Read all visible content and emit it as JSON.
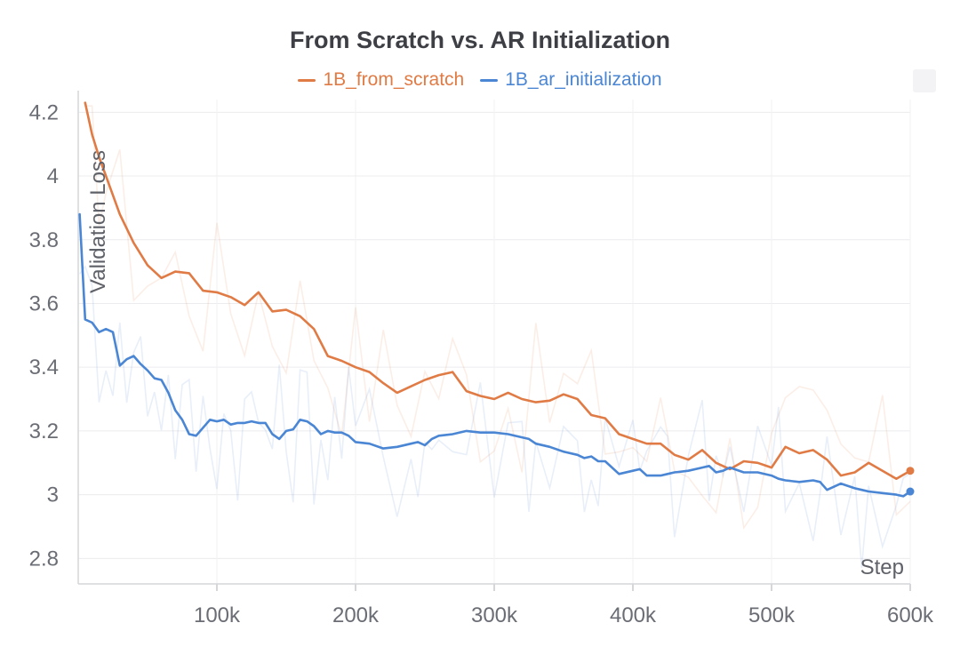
{
  "chart_data": {
    "type": "line",
    "title": "From Scratch vs. AR Initialization",
    "xlabel": "Step",
    "ylabel": "Validation Loss",
    "xlim": [
      0,
      600000
    ],
    "ylim": [
      2.72,
      4.24
    ],
    "x_ticks": [
      100000,
      200000,
      300000,
      400000,
      500000,
      600000
    ],
    "x_tick_labels": [
      "100k",
      "200k",
      "300k",
      "400k",
      "500k",
      "600k"
    ],
    "y_ticks": [
      2.8,
      3.0,
      3.2,
      3.4,
      3.6,
      3.8,
      4.0,
      4.2
    ],
    "y_tick_labels": [
      "2.8",
      "3",
      "3.2",
      "3.4",
      "3.6",
      "3.8",
      "4",
      "4.2"
    ],
    "grid": true,
    "legend_position": "top-center",
    "series": [
      {
        "name": "1B_from_scratch",
        "color": "#e07b45",
        "x": [
          5000,
          10000,
          15000,
          20000,
          30000,
          40000,
          50000,
          60000,
          70000,
          80000,
          90000,
          100000,
          110000,
          120000,
          130000,
          140000,
          150000,
          160000,
          170000,
          180000,
          190000,
          200000,
          210000,
          220000,
          230000,
          240000,
          250000,
          260000,
          270000,
          280000,
          290000,
          300000,
          310000,
          320000,
          330000,
          340000,
          350000,
          360000,
          370000,
          380000,
          390000,
          400000,
          410000,
          420000,
          430000,
          440000,
          450000,
          460000,
          470000,
          480000,
          490000,
          500000,
          510000,
          520000,
          530000,
          540000,
          550000,
          560000,
          570000,
          580000,
          590000,
          600000
        ],
        "values": [
          4.23,
          4.13,
          4.06,
          4.0,
          3.88,
          3.79,
          3.72,
          3.68,
          3.7,
          3.695,
          3.64,
          3.635,
          3.62,
          3.595,
          3.635,
          3.575,
          3.58,
          3.56,
          3.52,
          3.435,
          3.42,
          3.4,
          3.385,
          3.35,
          3.32,
          3.34,
          3.36,
          3.375,
          3.385,
          3.325,
          3.31,
          3.3,
          3.32,
          3.3,
          3.29,
          3.295,
          3.315,
          3.3,
          3.25,
          3.24,
          3.19,
          3.175,
          3.16,
          3.16,
          3.125,
          3.11,
          3.14,
          3.1,
          3.08,
          3.105,
          3.1,
          3.085,
          3.15,
          3.13,
          3.14,
          3.11,
          3.06,
          3.07,
          3.1,
          3.075,
          3.05,
          3.075
        ]
      },
      {
        "name": "1B_ar_initialization",
        "color": "#4a86d4",
        "x": [
          1000,
          5000,
          10000,
          15000,
          20000,
          25000,
          30000,
          35000,
          40000,
          45000,
          50000,
          55000,
          60000,
          65000,
          70000,
          75000,
          80000,
          85000,
          90000,
          95000,
          100000,
          105000,
          110000,
          115000,
          120000,
          125000,
          130000,
          135000,
          140000,
          145000,
          150000,
          155000,
          160000,
          165000,
          170000,
          175000,
          180000,
          185000,
          190000,
          195000,
          200000,
          210000,
          220000,
          230000,
          240000,
          245000,
          250000,
          255000,
          260000,
          270000,
          280000,
          290000,
          300000,
          310000,
          320000,
          325000,
          330000,
          340000,
          350000,
          360000,
          365000,
          370000,
          375000,
          380000,
          390000,
          400000,
          405000,
          410000,
          420000,
          425000,
          430000,
          440000,
          450000,
          455000,
          460000,
          465000,
          470000,
          480000,
          490000,
          500000,
          505000,
          510000,
          520000,
          530000,
          535000,
          540000,
          550000,
          560000,
          565000,
          570000,
          580000,
          590000,
          595000,
          600000
        ],
        "values": [
          3.88,
          3.55,
          3.54,
          3.51,
          3.52,
          3.51,
          3.405,
          3.425,
          3.435,
          3.41,
          3.39,
          3.365,
          3.36,
          3.32,
          3.265,
          3.235,
          3.19,
          3.185,
          3.21,
          3.235,
          3.23,
          3.235,
          3.22,
          3.225,
          3.225,
          3.23,
          3.225,
          3.225,
          3.19,
          3.175,
          3.2,
          3.205,
          3.235,
          3.23,
          3.215,
          3.19,
          3.2,
          3.195,
          3.195,
          3.185,
          3.165,
          3.16,
          3.145,
          3.15,
          3.16,
          3.165,
          3.155,
          3.175,
          3.185,
          3.19,
          3.2,
          3.195,
          3.195,
          3.19,
          3.18,
          3.175,
          3.16,
          3.15,
          3.135,
          3.125,
          3.115,
          3.12,
          3.105,
          3.105,
          3.065,
          3.075,
          3.08,
          3.06,
          3.06,
          3.065,
          3.07,
          3.075,
          3.085,
          3.09,
          3.07,
          3.075,
          3.085,
          3.07,
          3.07,
          3.06,
          3.05,
          3.045,
          3.04,
          3.045,
          3.04,
          3.015,
          3.035,
          3.02,
          3.015,
          3.01,
          3.005,
          3.0,
          2.995,
          3.01
        ]
      }
    ]
  }
}
